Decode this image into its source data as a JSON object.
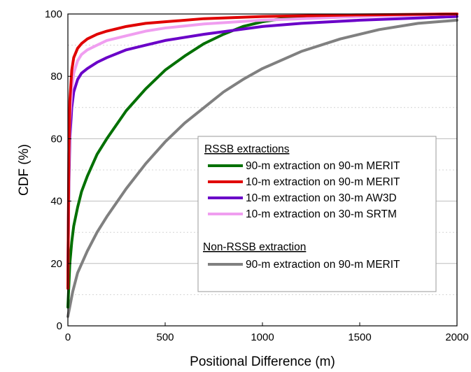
{
  "chart_data": {
    "type": "line",
    "xlabel": "Positional Difference (m)",
    "ylabel": "CDF (%)",
    "xlim": [
      0,
      2000
    ],
    "ylim": [
      0,
      100
    ],
    "x_ticks": [
      0,
      500,
      1000,
      1500,
      2000
    ],
    "x_tick_labels": [
      "0",
      "500",
      "1000",
      "1500",
      "2000"
    ],
    "y_ticks": [
      0,
      20,
      40,
      60,
      80,
      100
    ],
    "y_tick_labels": [
      "0",
      "20",
      "40",
      "60",
      "80",
      "100"
    ],
    "grid": {
      "major_y": true,
      "minor_y": true,
      "x": false
    },
    "legend_placement": "center-right",
    "legend_groups": [
      {
        "heading": "RSSB extractions",
        "series_names": [
          "90-m extraction on 90-m MERIT",
          "10-m extraction on 90-m MERIT",
          "10-m extraction on 30-m AW3D",
          "10-m extraction on 30-m SRTM"
        ]
      },
      {
        "heading": "Non-RSSB extraction",
        "series_names": [
          "90-m extraction on 90-m MERIT"
        ]
      }
    ],
    "series": [
      {
        "name": "90-m extraction on 90-m MERIT",
        "group": "RSSB extractions",
        "color": "#007000",
        "x": [
          0,
          10,
          20,
          30,
          50,
          70,
          100,
          150,
          200,
          300,
          400,
          500,
          600,
          700,
          800,
          900,
          1000,
          1100,
          1200,
          1400,
          1600,
          1800,
          2000
        ],
        "y": [
          6,
          20,
          27,
          32,
          38,
          43,
          48,
          55,
          60,
          69,
          76,
          82,
          86.5,
          90.5,
          93.5,
          96,
          97.5,
          98.5,
          99,
          99.3,
          99.6,
          99.8,
          100
        ]
      },
      {
        "name": "10-m extraction on 90-m MERIT",
        "group": "RSSB extractions",
        "color": "#e00000",
        "x": [
          0,
          5,
          10,
          20,
          30,
          50,
          70,
          100,
          150,
          200,
          300,
          400,
          500,
          700,
          1000,
          1500,
          2000
        ],
        "y": [
          12,
          55,
          72,
          82,
          86,
          89,
          90.5,
          92,
          93.5,
          94.5,
          96,
          97,
          97.5,
          98.5,
          99.2,
          99.7,
          100
        ]
      },
      {
        "name": "10-m extraction on 30-m AW3D",
        "group": "RSSB extractions",
        "color": "#6a00c8",
        "x": [
          0,
          5,
          10,
          20,
          30,
          50,
          70,
          100,
          150,
          200,
          300,
          400,
          500,
          700,
          1000,
          1200,
          1500,
          1800,
          2000
        ],
        "y": [
          17,
          45,
          60,
          70,
          75,
          79,
          81,
          82.5,
          84.5,
          86,
          88.5,
          90,
          91.5,
          93.5,
          96,
          97,
          98,
          98.7,
          99.2
        ]
      },
      {
        "name": "10-m extraction on 30-m SRTM",
        "group": "RSSB extractions",
        "color": "#f09ef0",
        "x": [
          0,
          5,
          10,
          20,
          30,
          50,
          70,
          100,
          150,
          200,
          300,
          400,
          500,
          700,
          1000,
          1500,
          2000
        ],
        "y": [
          15,
          50,
          66,
          76,
          81,
          85,
          87,
          88.5,
          90,
          91.5,
          93,
          94.5,
          95.5,
          96.8,
          98,
          99.2,
          100
        ]
      },
      {
        "name": "90-m extraction on 90-m MERIT",
        "group": "Non-RSSB extraction",
        "color": "#808080",
        "x": [
          0,
          25,
          50,
          100,
          150,
          200,
          300,
          400,
          500,
          600,
          700,
          800,
          900,
          1000,
          1200,
          1400,
          1600,
          1800,
          2000
        ],
        "y": [
          3,
          11,
          17,
          24,
          30,
          35,
          44,
          52,
          59,
          65,
          70,
          75,
          79,
          82.5,
          88,
          92,
          95,
          97,
          98
        ]
      }
    ]
  }
}
